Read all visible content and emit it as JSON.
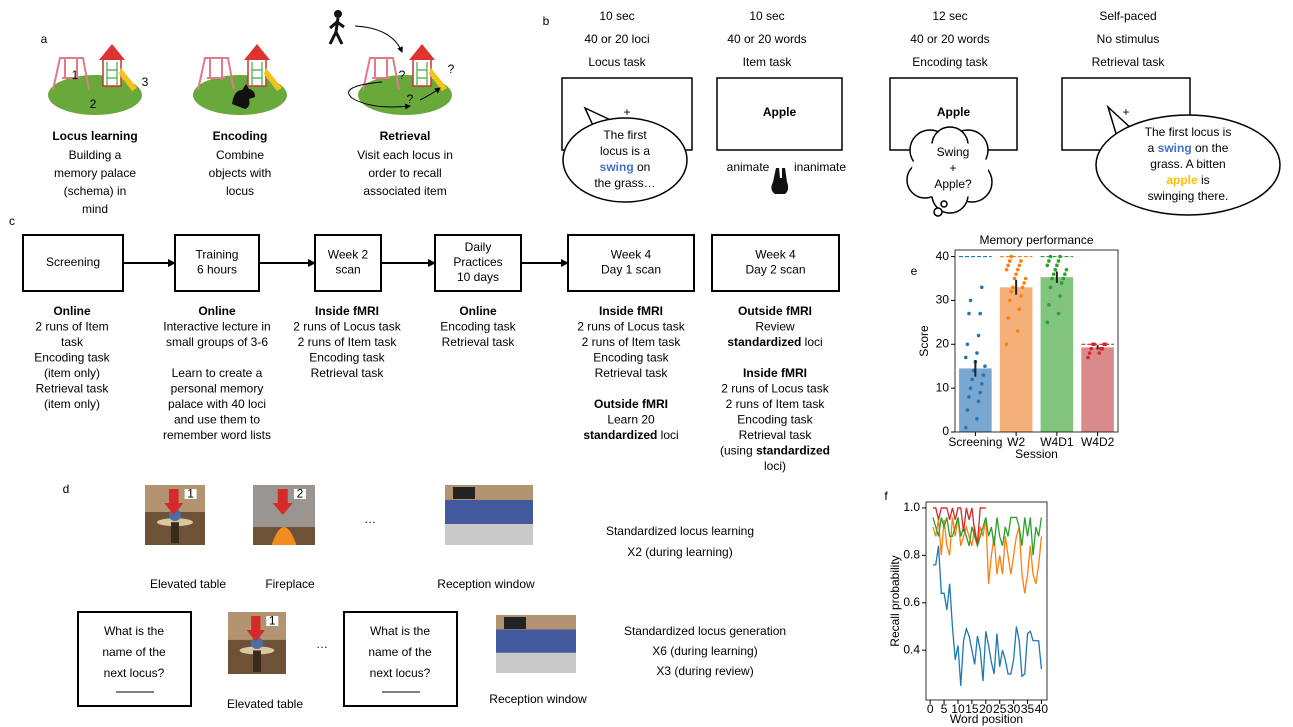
{
  "panel_a": {
    "label": "a",
    "items": [
      {
        "title": "Locus learning",
        "description": [
          "Building a",
          "memory palace",
          "(schema) in",
          "mind"
        ],
        "marks": [
          "1",
          "2",
          "3"
        ]
      },
      {
        "title": "Encoding",
        "description": [
          "Combine",
          "objects with",
          "locus"
        ]
      },
      {
        "title": "Retrieval",
        "description": [
          "Visit each locus in",
          "order to recall",
          "associated item"
        ],
        "marks": [
          "?",
          "?",
          "?"
        ]
      }
    ]
  },
  "panel_b": {
    "label": "b",
    "columns": [
      {
        "duration": "10 sec",
        "stimuli": "40 or 20 loci",
        "task": "Locus task",
        "screen": "+",
        "bubble": [
          "The first",
          "locus is a",
          [
            {
              "text": "swing",
              "color": "#4472c4"
            },
            "on"
          ],
          "the grass…"
        ]
      },
      {
        "duration": "10 sec",
        "stimuli": "40 or 20 words",
        "task": "Item task",
        "screen": "Apple",
        "screen_color": "#ffc000",
        "response": [
          "animate",
          "inanimate"
        ]
      },
      {
        "duration": "12 sec",
        "stimuli": "40 or 20 words",
        "task": "Encoding task",
        "screen": "Apple",
        "thought": [
          "Swing",
          "+",
          "Apple?"
        ]
      },
      {
        "duration": "Self-paced",
        "stimuli": "No stimulus",
        "task": "Retrieval task",
        "screen": "+",
        "bubble": [
          "The first locus is",
          [
            "a",
            {
              "text": "swing",
              "color": "#4472c4"
            },
            "on the"
          ],
          "grass. A bitten",
          [
            {
              "text": "apple",
              "color": "#ffc000"
            },
            "is"
          ],
          "swinging there."
        ]
      }
    ]
  },
  "panel_c": {
    "label": "c",
    "stages": [
      {
        "box": [
          "Screening"
        ],
        "details": [
          {
            "heading": "Online",
            "lines": [
              "2 runs of Item",
              "task",
              "Encoding task",
              "(item only)",
              "Retrieval task",
              "(item only)"
            ]
          }
        ]
      },
      {
        "box": [
          "Training",
          "6 hours"
        ],
        "details": [
          {
            "heading": "Online",
            "lines": [
              "Interactive lecture in",
              "small groups of 3-6"
            ]
          },
          {
            "lines": [
              "Learn to create a",
              "personal memory",
              "palace with 40 loci",
              "and use them to",
              "remember word lists"
            ]
          }
        ]
      },
      {
        "box": [
          "Week 2",
          "scan"
        ],
        "details": [
          {
            "heading": "Inside fMRI",
            "lines": [
              "2 runs of Locus task",
              "2 runs of Item task",
              "Encoding task",
              "Retrieval task"
            ]
          }
        ]
      },
      {
        "box": [
          "Daily",
          "Practices",
          "10 days"
        ],
        "details": [
          {
            "heading": "Online",
            "lines": [
              "Encoding task",
              "Retrieval task"
            ]
          }
        ]
      },
      {
        "box": [
          "Week 4",
          "Day 1 scan"
        ],
        "details": [
          {
            "heading": "Inside fMRI",
            "lines": [
              "2 runs of Locus task",
              "2 runs of Item task",
              "Encoding task",
              "Retrieval task"
            ]
          },
          {
            "heading": "Outside fMRI",
            "lines": [
              "Learn 20",
              [
                {
                  "text": "standardized",
                  "bold": true
                },
                "loci"
              ]
            ]
          }
        ]
      },
      {
        "box": [
          "Week 4",
          "Day 2 scan"
        ],
        "details": [
          {
            "heading": "Outside fMRI",
            "lines": [
              "Review",
              [
                {
                  "text": "standardized",
                  "bold": true
                },
                "loci"
              ]
            ]
          },
          {
            "heading": "Inside fMRI",
            "lines": [
              "2 runs of Locus task",
              "2 runs of Item task",
              "Encoding task",
              "Retrieval task",
              [
                "(using",
                {
                  "text": "standardized",
                  "bold": true
                }
              ],
              "loci)"
            ]
          }
        ]
      }
    ]
  },
  "panel_d": {
    "label": "d",
    "learning": {
      "loci": [
        "Elevated table",
        "Fireplace",
        "Reception window"
      ],
      "signs": [
        "1",
        "2"
      ],
      "ellipsis": "…",
      "text": [
        "Standardized locus learning",
        "X2 (during learning)"
      ]
    },
    "generation": {
      "prompt": [
        "What is the",
        "name of the",
        "next locus?"
      ],
      "loci": [
        "Elevated table",
        "Reception window"
      ],
      "signs": [
        "1"
      ],
      "ellipsis": "…",
      "text": [
        "Standardized locus generation",
        "X6 (during learning)",
        "X3 (during review)"
      ]
    }
  },
  "chart_data": [
    {
      "type": "bar",
      "label": "e",
      "title": "Memory performance",
      "xlabel": "Session",
      "ylabel": "Score",
      "categories": [
        "Screening",
        "W2",
        "W4D1",
        "W4D2"
      ],
      "values": [
        14.5,
        33,
        35.3,
        19.3
      ],
      "errors": [
        1.9,
        1.7,
        1.3,
        0.5
      ],
      "colors": [
        "#7aa7cf",
        "#f5b07a",
        "#80c47e",
        "#db8a8b"
      ],
      "point_colors": [
        "#1f77b4",
        "#ff7f0e",
        "#2ca02c",
        "#d62728"
      ],
      "max_scores": [
        40,
        40,
        40,
        20
      ],
      "points": [
        [
          1,
          3,
          5,
          7,
          8,
          9,
          10,
          11,
          12,
          13,
          14,
          15,
          16,
          17,
          18,
          20,
          22,
          27,
          27,
          30,
          33
        ],
        [
          20,
          23,
          26,
          28,
          30,
          31,
          32,
          33,
          33,
          34,
          35,
          35,
          36,
          37,
          37,
          38,
          38,
          39,
          39,
          40
        ],
        [
          25,
          27,
          29,
          31,
          33,
          34,
          35,
          35,
          36,
          36,
          37,
          37,
          38,
          38,
          39,
          39,
          40,
          40
        ],
        [
          17,
          18,
          18,
          19,
          19,
          19,
          20,
          20,
          20,
          20
        ]
      ],
      "ylim": [
        0,
        41.5
      ],
      "yticks": [
        0,
        10,
        20,
        30,
        40
      ]
    },
    {
      "type": "line",
      "label": "f",
      "xlabel": "Word position",
      "ylabel": "Recall probability",
      "x": [
        1,
        2,
        3,
        4,
        5,
        6,
        7,
        8,
        9,
        10,
        11,
        12,
        13,
        14,
        15,
        16,
        17,
        18,
        19,
        20,
        21,
        22,
        23,
        24,
        25,
        26,
        27,
        28,
        29,
        30,
        31,
        32,
        33,
        34,
        35,
        36,
        37,
        38,
        39,
        40
      ],
      "series": [
        {
          "color": "#1f77b4",
          "values": [
            0.76,
            0.76,
            0.84,
            0.64,
            0.64,
            0.57,
            0.68,
            0.5,
            0.36,
            0.42,
            0.25,
            0.44,
            0.49,
            0.46,
            0.4,
            0.34,
            0.46,
            0.4,
            0.27,
            0.48,
            0.42,
            0.35,
            0.3,
            0.47,
            0.33,
            0.4,
            0.36,
            0.3,
            0.3,
            0.36,
            0.5,
            0.44,
            0.29,
            0.3,
            0.47,
            0.48,
            0.44,
            0.44,
            0.44,
            0.32
          ]
        },
        {
          "color": "#ff7f0e",
          "values": [
            0.92,
            0.88,
            0.95,
            0.8,
            0.95,
            0.84,
            0.8,
            0.96,
            0.88,
            0.96,
            0.84,
            0.88,
            0.92,
            0.88,
            0.84,
            0.92,
            0.84,
            0.92,
            0.88,
            0.96,
            0.68,
            0.8,
            0.88,
            0.72,
            0.8,
            0.72,
            0.88,
            0.8,
            0.72,
            0.8,
            0.88,
            0.92,
            0.72,
            0.64,
            0.72,
            0.84,
            0.72,
            0.68,
            0.76,
            0.88
          ]
        },
        {
          "color": "#2ca02c",
          "values": [
            0.96,
            0.92,
            0.88,
            0.96,
            0.92,
            0.96,
            0.88,
            0.88,
            0.92,
            0.96,
            0.88,
            0.92,
            0.88,
            0.84,
            0.92,
            0.88,
            0.84,
            0.88,
            0.92,
            0.96,
            0.88,
            0.92,
            0.84,
            0.96,
            0.88,
            0.84,
            0.92,
            0.88,
            0.96,
            0.96,
            0.96,
            0.92,
            0.84,
            0.96,
            0.88,
            0.96,
            0.8,
            0.92,
            0.88,
            0.96
          ]
        },
        {
          "color": "#d62728",
          "values": [
            1.0,
            1.0,
            0.95,
            1.0,
            1.0,
            1.0,
            0.95,
            1.0,
            0.95,
            1.0,
            1.0,
            0.9,
            1.0,
            0.95,
            1.0,
            0.9,
            0.85,
            1.0,
            1.0,
            1.0,
            null,
            null,
            null,
            null,
            null,
            null,
            null,
            null,
            null,
            null,
            null,
            null,
            null,
            null,
            null,
            null,
            null,
            null,
            null,
            null
          ]
        }
      ],
      "xlim": [
        -1.5,
        42
      ],
      "xticks": [
        0,
        5,
        10,
        15,
        20,
        25,
        30,
        35,
        40
      ],
      "ylim": [
        0.19,
        1.025
      ],
      "yticks": [
        0.4,
        0.6,
        0.8,
        {
          "value": 1,
          "label": "1.0"
        }
      ]
    }
  ]
}
